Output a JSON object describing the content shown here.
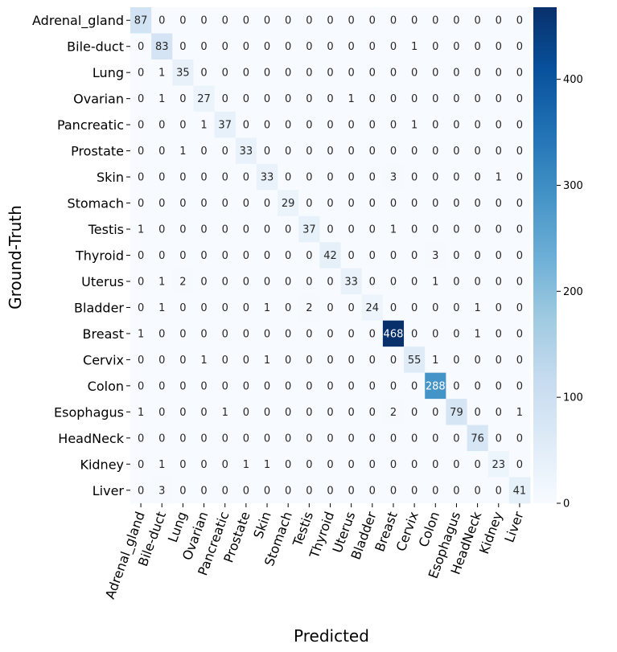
{
  "chart_data": {
    "type": "heatmap",
    "xlabel": "Predicted",
    "ylabel": "Ground-Truth",
    "labels": [
      "Adrenal_gland",
      "Bile-duct",
      "Lung",
      "Ovarian",
      "Pancreatic",
      "Prostate",
      "Skin",
      "Stomach",
      "Testis",
      "Thyroid",
      "Uterus",
      "Bladder",
      "Breast",
      "Cervix",
      "Colon",
      "Esophagus",
      "HeadNeck",
      "Kidney",
      "Liver"
    ],
    "matrix": [
      [
        87,
        0,
        0,
        0,
        0,
        0,
        0,
        0,
        0,
        0,
        0,
        0,
        0,
        0,
        0,
        0,
        0,
        0,
        0
      ],
      [
        0,
        83,
        0,
        0,
        0,
        0,
        0,
        0,
        0,
        0,
        0,
        0,
        0,
        1,
        0,
        0,
        0,
        0,
        0
      ],
      [
        0,
        1,
        35,
        0,
        0,
        0,
        0,
        0,
        0,
        0,
        0,
        0,
        0,
        0,
        0,
        0,
        0,
        0,
        0
      ],
      [
        0,
        1,
        0,
        27,
        0,
        0,
        0,
        0,
        0,
        0,
        1,
        0,
        0,
        0,
        0,
        0,
        0,
        0,
        0
      ],
      [
        0,
        0,
        0,
        1,
        37,
        0,
        0,
        0,
        0,
        0,
        0,
        0,
        0,
        1,
        0,
        0,
        0,
        0,
        0
      ],
      [
        0,
        0,
        1,
        0,
        0,
        33,
        0,
        0,
        0,
        0,
        0,
        0,
        0,
        0,
        0,
        0,
        0,
        0,
        0
      ],
      [
        0,
        0,
        0,
        0,
        0,
        0,
        33,
        0,
        0,
        0,
        0,
        0,
        3,
        0,
        0,
        0,
        0,
        1,
        0
      ],
      [
        0,
        0,
        0,
        0,
        0,
        0,
        0,
        29,
        0,
        0,
        0,
        0,
        0,
        0,
        0,
        0,
        0,
        0,
        0
      ],
      [
        1,
        0,
        0,
        0,
        0,
        0,
        0,
        0,
        37,
        0,
        0,
        0,
        1,
        0,
        0,
        0,
        0,
        0,
        0
      ],
      [
        0,
        0,
        0,
        0,
        0,
        0,
        0,
        0,
        0,
        42,
        0,
        0,
        0,
        0,
        3,
        0,
        0,
        0,
        0
      ],
      [
        0,
        1,
        2,
        0,
        0,
        0,
        0,
        0,
        0,
        0,
        33,
        0,
        0,
        0,
        1,
        0,
        0,
        0,
        0
      ],
      [
        0,
        1,
        0,
        0,
        0,
        0,
        1,
        0,
        2,
        0,
        0,
        24,
        0,
        0,
        0,
        0,
        1,
        0,
        0
      ],
      [
        1,
        0,
        0,
        0,
        0,
        0,
        0,
        0,
        0,
        0,
        0,
        0,
        468,
        0,
        0,
        0,
        1,
        0,
        0
      ],
      [
        0,
        0,
        0,
        1,
        0,
        0,
        1,
        0,
        0,
        0,
        0,
        0,
        0,
        55,
        1,
        0,
        0,
        0,
        0
      ],
      [
        0,
        0,
        0,
        0,
        0,
        0,
        0,
        0,
        0,
        0,
        0,
        0,
        0,
        0,
        288,
        0,
        0,
        0,
        0
      ],
      [
        1,
        0,
        0,
        0,
        1,
        0,
        0,
        0,
        0,
        0,
        0,
        0,
        2,
        0,
        0,
        79,
        0,
        0,
        1
      ],
      [
        0,
        0,
        0,
        0,
        0,
        0,
        0,
        0,
        0,
        0,
        0,
        0,
        0,
        0,
        0,
        0,
        76,
        0,
        0
      ],
      [
        0,
        1,
        0,
        0,
        0,
        1,
        1,
        0,
        0,
        0,
        0,
        0,
        0,
        0,
        0,
        0,
        0,
        23,
        0
      ],
      [
        0,
        3,
        0,
        0,
        0,
        0,
        0,
        0,
        0,
        0,
        0,
        0,
        0,
        0,
        0,
        0,
        0,
        0,
        41
      ]
    ],
    "colorbar": {
      "ticks": [
        0,
        100,
        200,
        300,
        400
      ],
      "range": [
        0,
        468
      ]
    },
    "colormap": "Blues",
    "colors": {
      "low": "#f7fbff",
      "high": "#08306b"
    }
  }
}
